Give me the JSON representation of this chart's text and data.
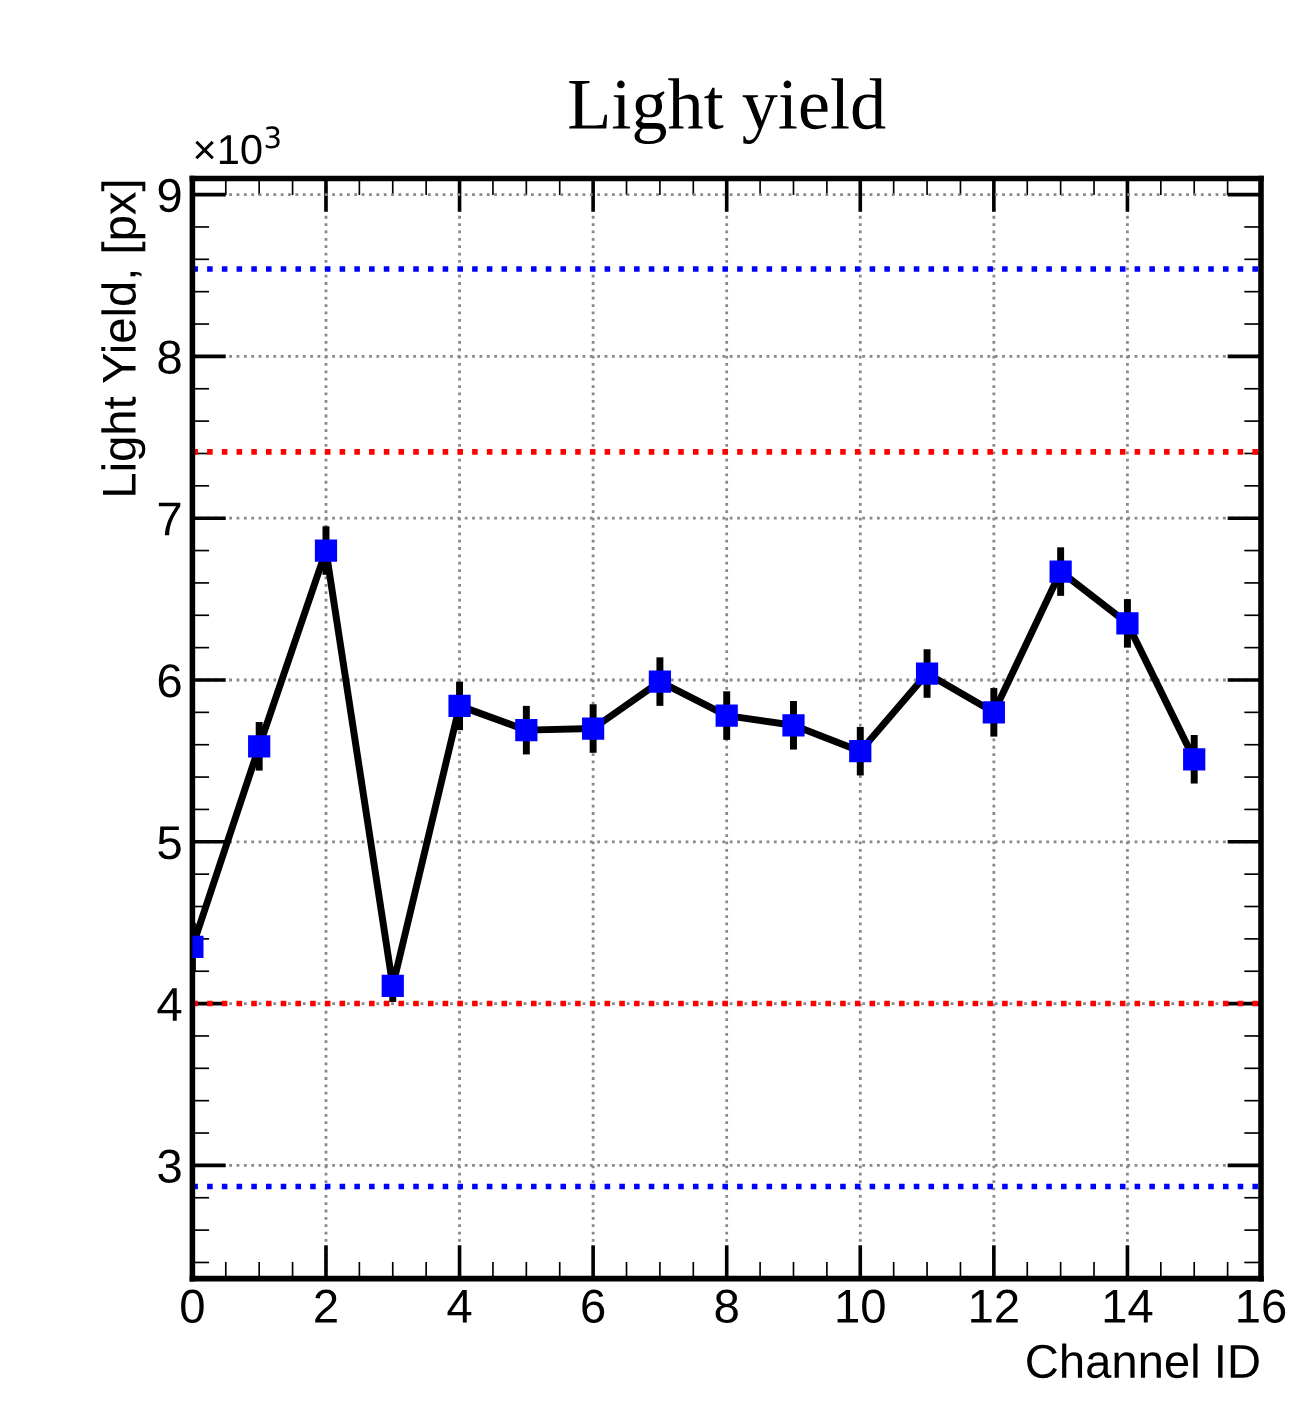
{
  "chart_data": {
    "type": "line",
    "title": "Light yield",
    "xlabel": "Channel ID",
    "ylabel": "Light Yield, [px]",
    "x": [
      0,
      1,
      2,
      3,
      4,
      5,
      6,
      7,
      8,
      9,
      10,
      11,
      12,
      13,
      14,
      15
    ],
    "series": [
      {
        "color": "#0000ff",
        "values": [
          4.35,
          5.59,
          6.8,
          4.11,
          5.84,
          5.69,
          5.7,
          5.99,
          5.78,
          5.72,
          5.56,
          6.04,
          5.8,
          6.67,
          6.35,
          5.51
        ],
        "errors": [
          0.15,
          0.15,
          0.15,
          0.1,
          0.15,
          0.15,
          0.15,
          0.15,
          0.15,
          0.15,
          0.15,
          0.15,
          0.15,
          0.15,
          0.15,
          0.15
        ]
      }
    ],
    "marker": "square",
    "line_style": "solid",
    "xlim": [
      0,
      16
    ],
    "xticks": [
      0,
      2,
      4,
      6,
      8,
      10,
      12,
      14,
      16
    ],
    "ylim": [
      2.3,
      9.1
    ],
    "yticks": [
      3,
      4,
      5,
      6,
      7,
      8,
      9
    ],
    "ref_lines": [
      {
        "axis": "y",
        "value": 8.54,
        "label": null,
        "color": "#0000ff",
        "line_style": "dotted"
      },
      {
        "axis": "y",
        "value": 7.41,
        "label": null,
        "color": "#ff0000",
        "line_style": "dotted"
      },
      {
        "axis": "y",
        "value": 4.0,
        "label": null,
        "color": "#ff0000",
        "line_style": "dotted"
      },
      {
        "axis": "y",
        "value": 2.87,
        "label": null,
        "color": "#0000ff",
        "line_style": "dotted"
      }
    ],
    "annotations": [
      "×10$^{3}$"
    ],
    "grid": true,
    "legend": false
  }
}
